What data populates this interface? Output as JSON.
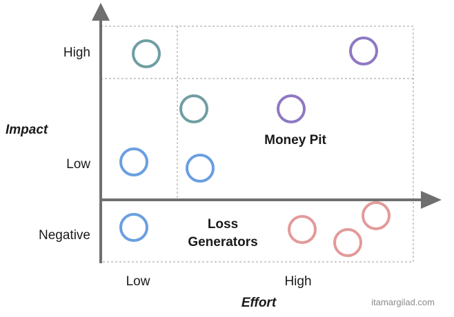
{
  "axes": {
    "y_title": "Impact",
    "x_title": "Effort",
    "y_ticks": [
      "High",
      "Low",
      "Negative"
    ],
    "x_ticks": [
      "Low",
      "High"
    ]
  },
  "regions": {
    "money_pit": "Money Pit",
    "loss_generators_line1": "Loss",
    "loss_generators_line2": "Generators"
  },
  "watermark": "itamargilad.com",
  "colors": {
    "teal": "#6f9ea3",
    "purple": "#8e78c2",
    "blue": "#6a9fe0",
    "red": "#e39a9a",
    "axis": "#6f6f6f",
    "grid": "#9a9a9a"
  },
  "ideas": [
    {
      "color": "teal",
      "effort": "low",
      "impact": "high"
    },
    {
      "color": "purple",
      "effort": "high",
      "impact": "high"
    },
    {
      "color": "teal",
      "effort": "low",
      "impact": "low"
    },
    {
      "color": "purple",
      "effort": "high",
      "impact": "low"
    },
    {
      "color": "blue",
      "effort": "low",
      "impact": "low"
    },
    {
      "color": "blue",
      "effort": "low",
      "impact": "low"
    },
    {
      "color": "blue",
      "effort": "low",
      "impact": "negative"
    },
    {
      "color": "red",
      "effort": "high",
      "impact": "negative"
    },
    {
      "color": "red",
      "effort": "high",
      "impact": "negative"
    },
    {
      "color": "red",
      "effort": "high",
      "impact": "negative"
    }
  ]
}
